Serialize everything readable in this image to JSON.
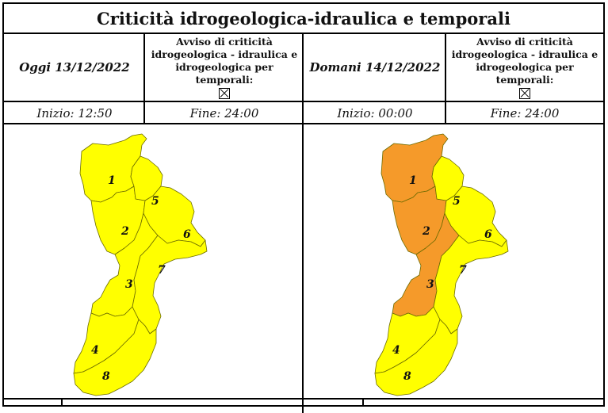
{
  "title": "Criticità idrogeologica-idraulica e temporali",
  "panels": [
    {
      "date_label": "Oggi 13/12/2022",
      "avviso_text": "Avviso di criticità idrogeologica - idraulica e idrogeologica per temporali:",
      "start_label": "Inizio: 12:50",
      "end_label": "Fine: 24:00",
      "zones": [
        {
          "id": "1",
          "level": "yellow"
        },
        {
          "id": "2",
          "level": "yellow"
        },
        {
          "id": "3",
          "level": "yellow"
        },
        {
          "id": "4",
          "level": "yellow"
        },
        {
          "id": "5",
          "level": "yellow"
        },
        {
          "id": "6",
          "level": "yellow"
        },
        {
          "id": "7",
          "level": "yellow"
        },
        {
          "id": "8",
          "level": "yellow"
        }
      ]
    },
    {
      "date_label": "Domani 14/12/2022",
      "avviso_text": "Avviso di criticità idrogeologica - idraulica e idrogeologica per temporali:",
      "start_label": "Inizio: 00:00",
      "end_label": "Fine: 24:00",
      "zones": [
        {
          "id": "1",
          "level": "orange"
        },
        {
          "id": "2",
          "level": "orange"
        },
        {
          "id": "3",
          "level": "orange"
        },
        {
          "id": "4",
          "level": "yellow"
        },
        {
          "id": "5",
          "level": "yellow"
        },
        {
          "id": "6",
          "level": "yellow"
        },
        {
          "id": "7",
          "level": "yellow"
        },
        {
          "id": "8",
          "level": "yellow"
        }
      ]
    }
  ],
  "colors": {
    "yellow": "#ffff00",
    "orange": "#f59a2a",
    "border": "#000000"
  }
}
